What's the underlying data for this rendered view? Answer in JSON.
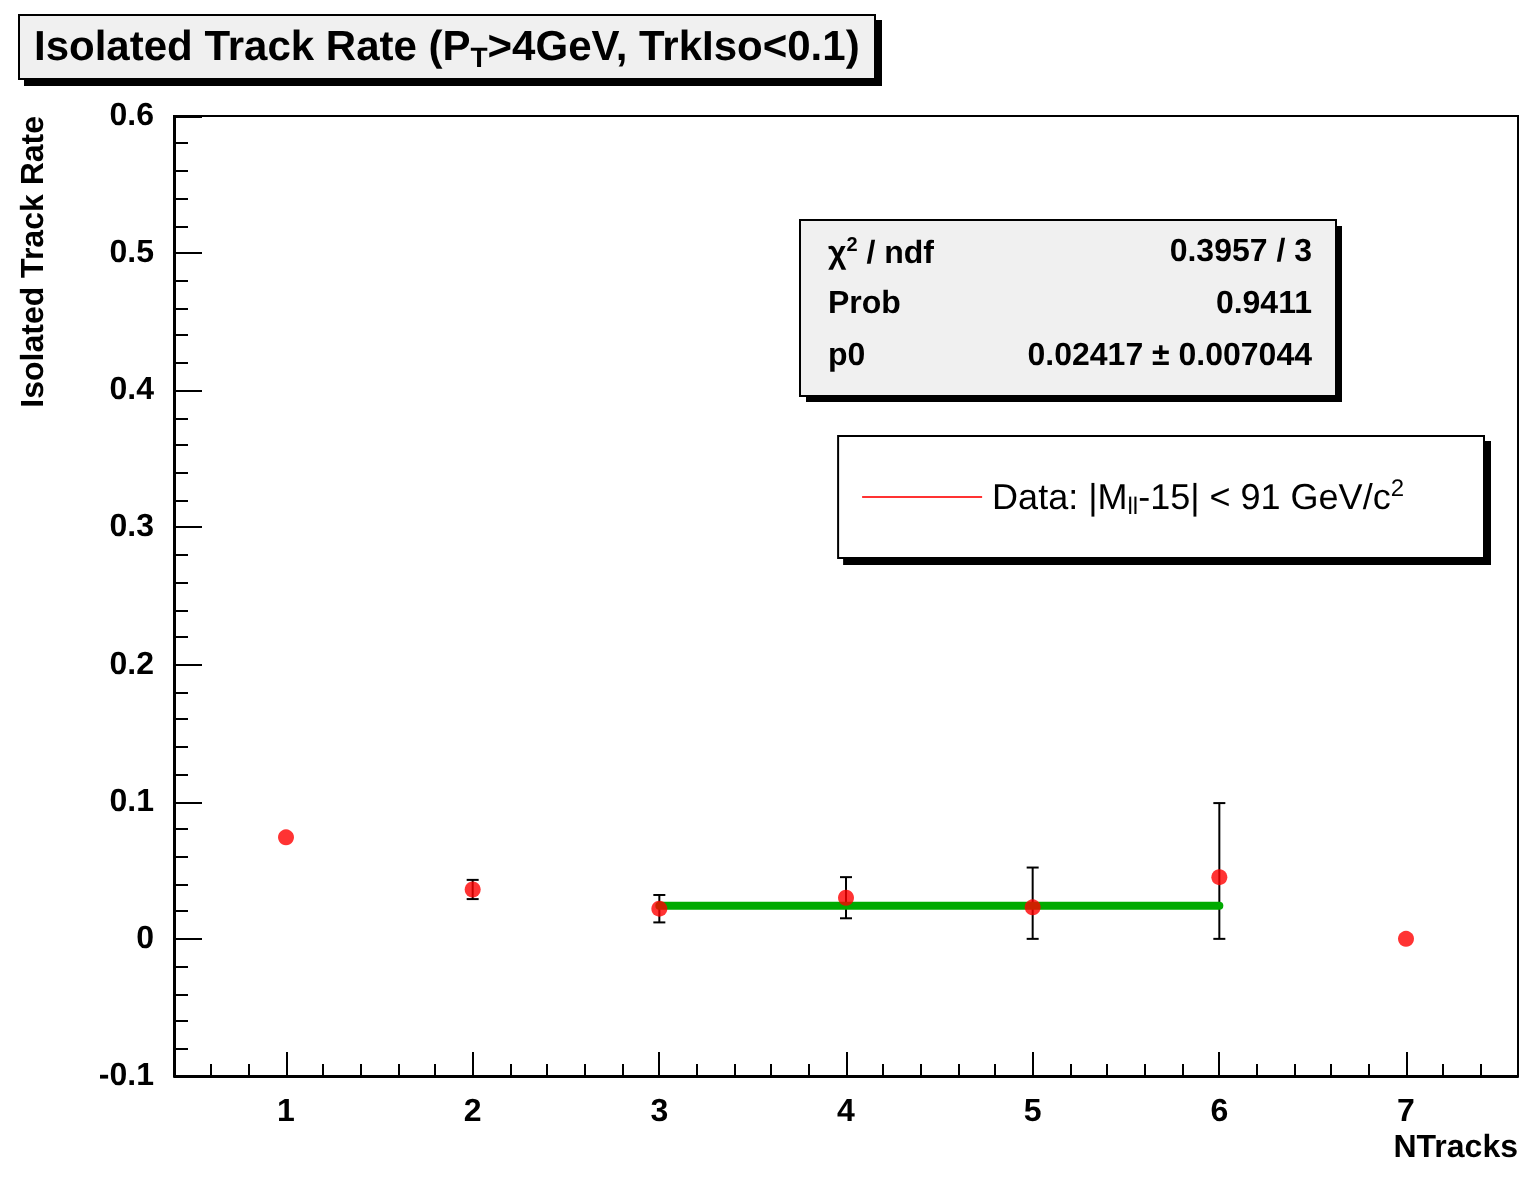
{
  "chart_data": {
    "type": "scatter",
    "title": "Isolated Track Rate (P$_{T}$>4GeV, TrkIso<0.1)",
    "xlabel": "NTracks",
    "ylabel": "Isolated Track Rate",
    "x": [
      1,
      2,
      3,
      4,
      5,
      6,
      7
    ],
    "series": [
      {
        "name": "Data: |M$_{ll}$-15| < 91 GeV/c$^{2}$",
        "color": "#ff0000",
        "values": [
          0.074,
          0.036,
          0.022,
          0.03,
          0.023,
          0.045,
          0.0
        ],
        "errors": [
          null,
          0.007,
          0.01,
          0.015,
          [
            0.0,
            0.052
          ],
          [
            0.0,
            0.099
          ],
          null
        ]
      },
      {
        "type": "line",
        "color": "#00aa00",
        "x": [
          3,
          6
        ],
        "values": [
          0.02417,
          0.02417
        ],
        "marker": "none"
      }
    ],
    "xlim": [
      0.4,
      7.6
    ],
    "xticks": [
      1,
      2,
      3,
      4,
      5,
      6,
      7
    ],
    "ylim": [
      -0.1,
      0.6
    ],
    "yticks": [
      -0.1,
      0,
      0.1,
      0.2,
      0.3,
      0.4,
      0.5,
      0.6
    ],
    "annotations": [
      "χ$^{2}$ / ndf",
      "0.3957 / 3",
      "Prob",
      "0.9411",
      "p0",
      "0.02417 ± 0.007044"
    ],
    "legend": "top right",
    "grid": false,
    "marker": "circle"
  }
}
